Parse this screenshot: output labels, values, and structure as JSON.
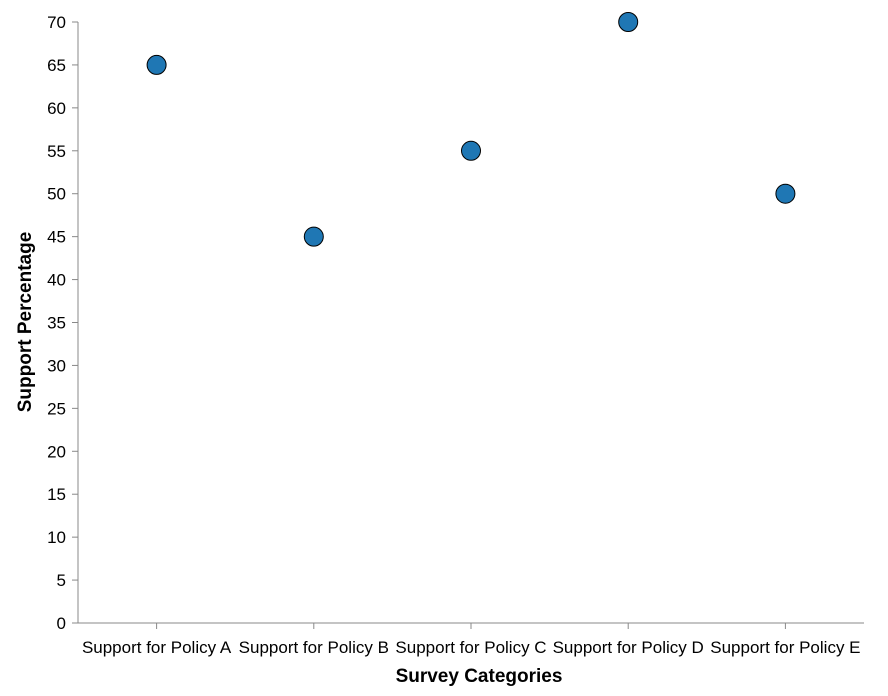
{
  "chart_data": {
    "type": "scatter",
    "categories": [
      "Support for Policy A",
      "Support for Policy B",
      "Support for Policy C",
      "Support for Policy D",
      "Support for Policy E"
    ],
    "values": [
      65,
      45,
      55,
      70,
      50
    ],
    "xlabel": "Survey Categories",
    "ylabel": "Support Percentage",
    "ylim": [
      0,
      70
    ],
    "yticks": [
      0,
      5,
      10,
      15,
      20,
      25,
      30,
      35,
      40,
      45,
      50,
      55,
      60,
      65,
      70
    ],
    "grid": false,
    "marker_color": "#1f77b4",
    "marker_edge_color": "#000000"
  }
}
